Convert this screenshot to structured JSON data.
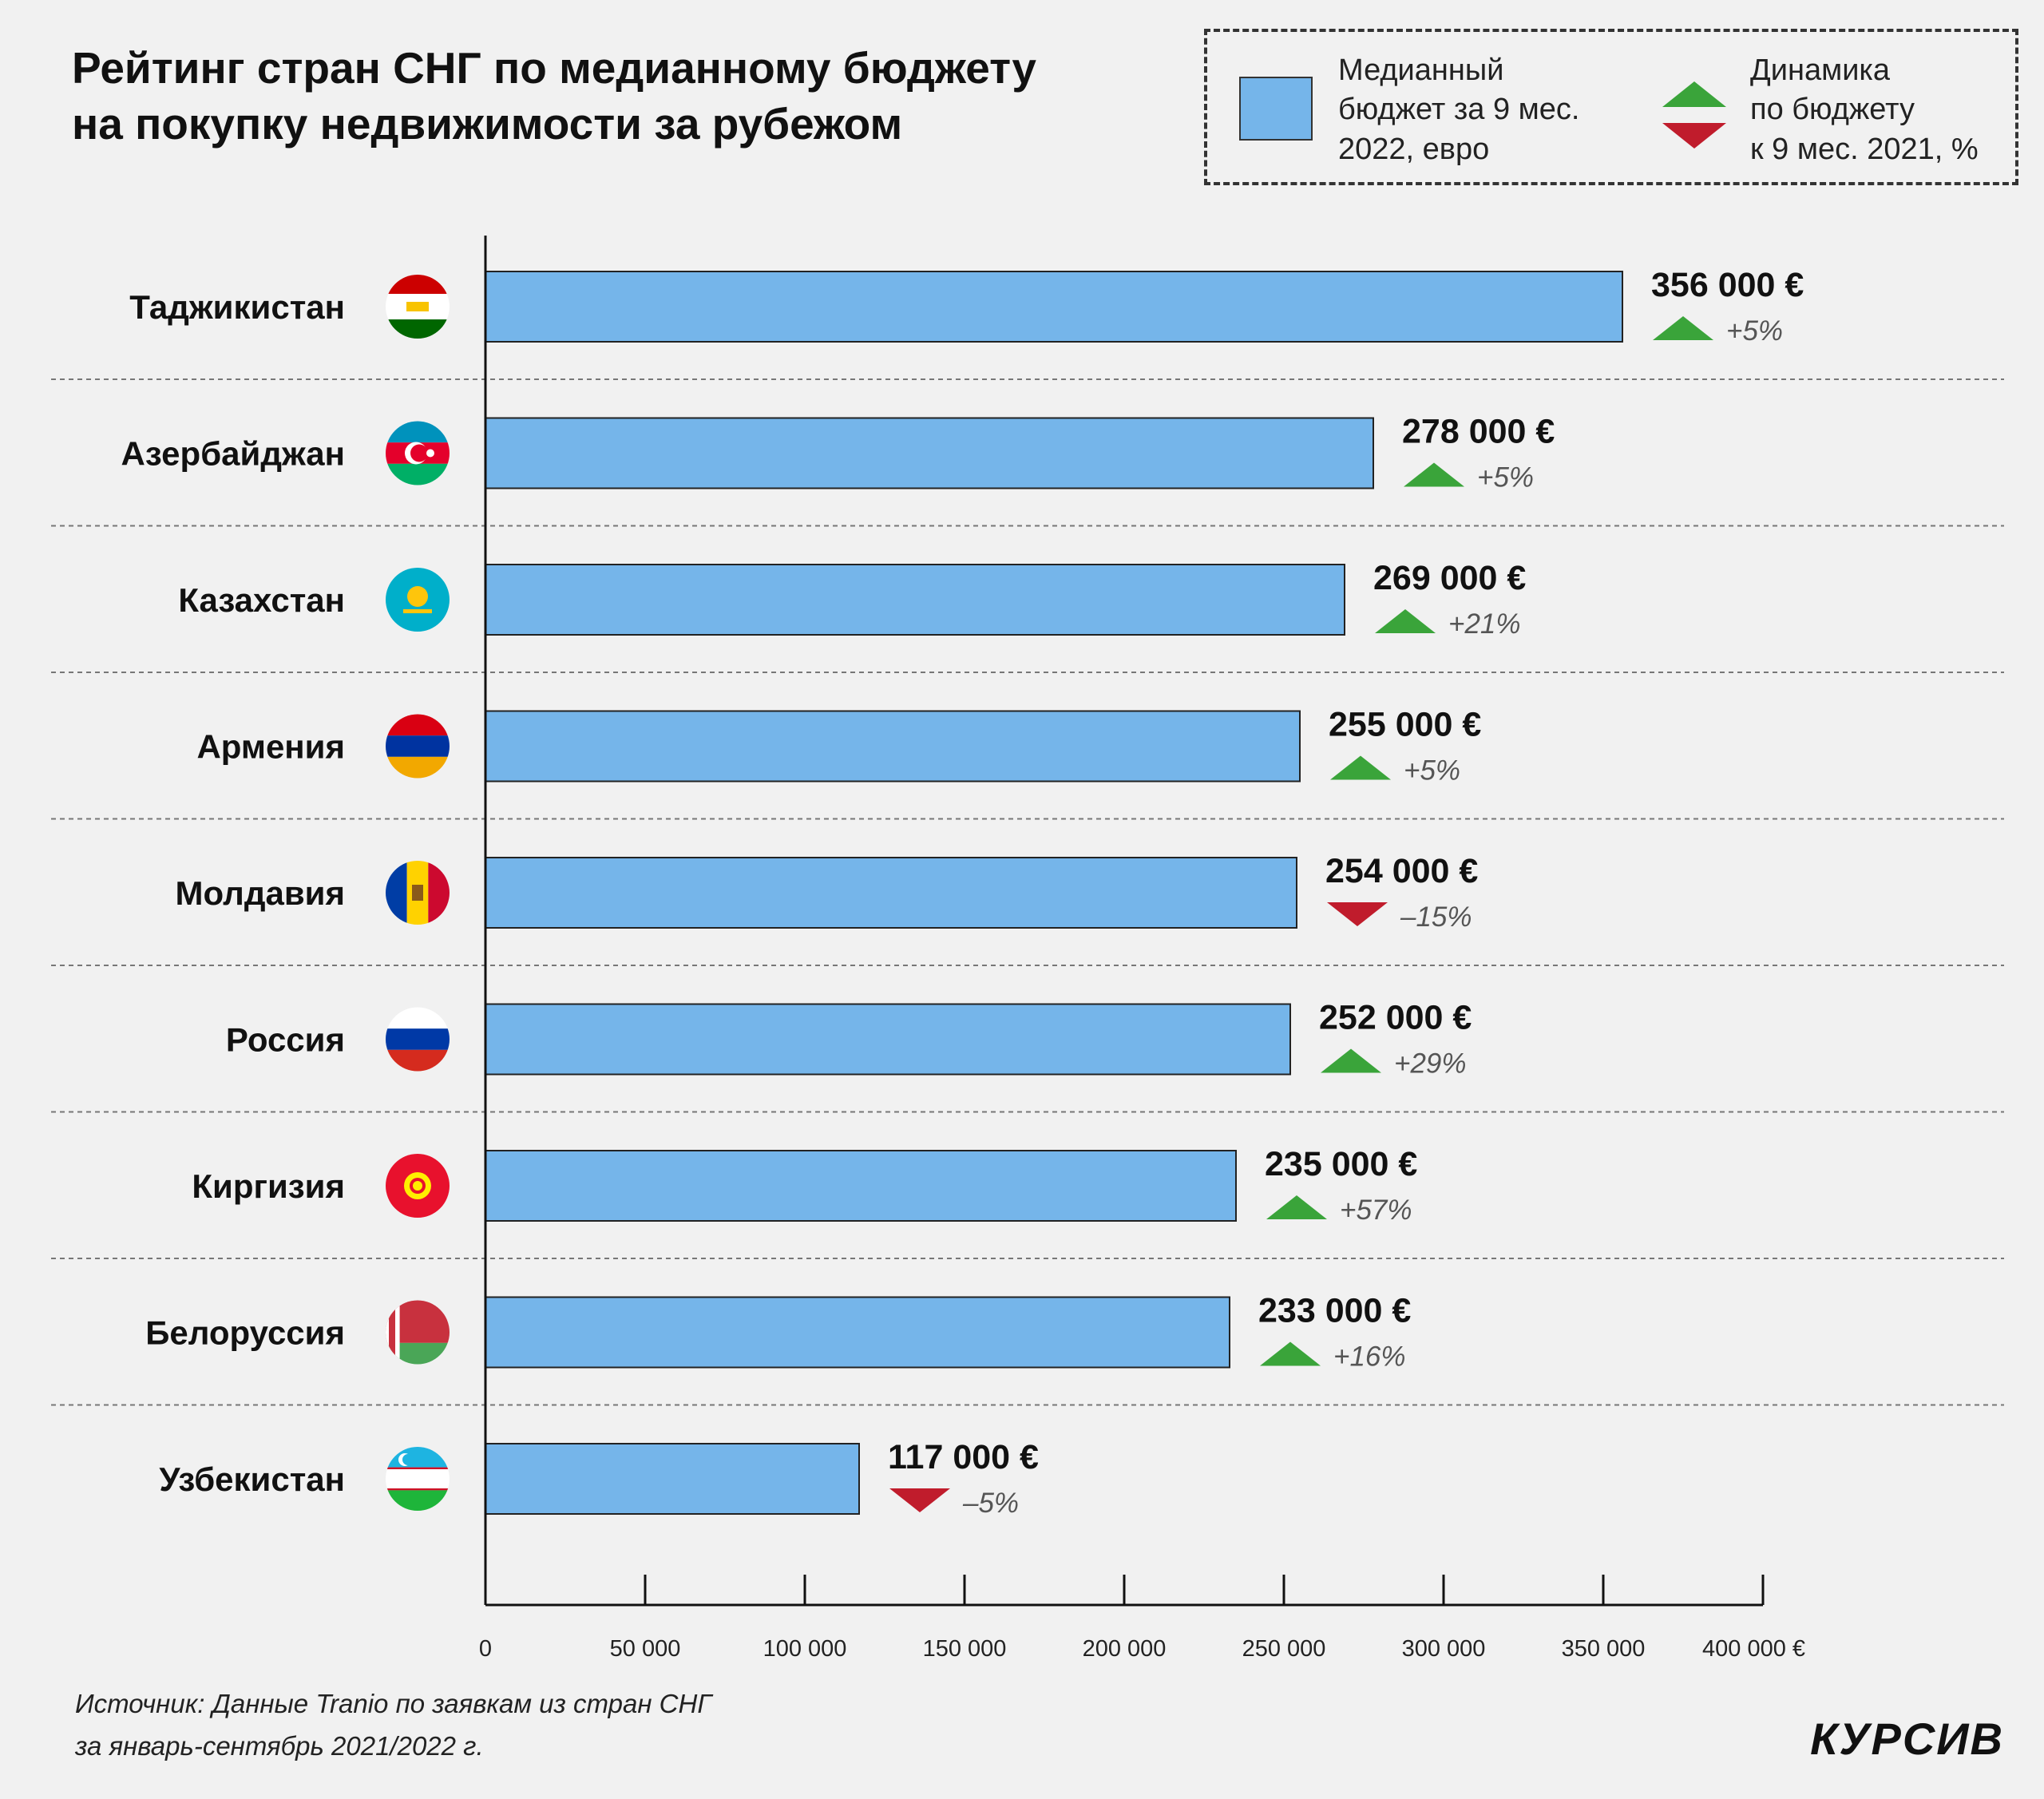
{
  "title": "Рейтинг стран СНГ по медианному бюджету\nна покупку недвижимости за рубежом",
  "legend": {
    "budget": "Медианный\nбюджет за 9 мес.\n2022, евро",
    "dynamics": "Динамика\nпо бюджету\nк 9 мес. 2021, %"
  },
  "colors": {
    "bar": "#75b5ea",
    "up": "#3aa43a",
    "down": "#c01c2c"
  },
  "chart_data": {
    "type": "bar",
    "orientation": "horizontal",
    "categories": [
      "Таджикистан",
      "Азербайджан",
      "Казахстан",
      "Армения",
      "Молдавия",
      "Россия",
      "Киргизия",
      "Белоруссия",
      "Узбекистан"
    ],
    "values": [
      356000,
      278000,
      269000,
      255000,
      254000,
      252000,
      235000,
      233000,
      117000
    ],
    "value_labels": [
      "356 000 €",
      "278 000 €",
      "269 000 €",
      "255 000 €",
      "254 000 €",
      "252 000 €",
      "235 000 €",
      "233 000 €",
      "117 000 €"
    ],
    "change": [
      5,
      5,
      21,
      5,
      -15,
      29,
      57,
      16,
      -5
    ],
    "change_labels": [
      "+5%",
      "+5%",
      "+21%",
      "+5%",
      "–15%",
      "+29%",
      "+57%",
      "+16%",
      "–5%"
    ],
    "flags": [
      "tajikistan-flag",
      "azerbaijan-flag",
      "kazakhstan-flag",
      "armenia-flag",
      "moldova-flag",
      "russia-flag",
      "kyrgyzstan-flag",
      "belarus-flag",
      "uzbekistan-flag"
    ],
    "xlim": [
      0,
      400000
    ],
    "xticks": [
      0,
      50000,
      100000,
      150000,
      200000,
      250000,
      300000,
      350000,
      400000
    ],
    "xtick_labels": [
      "0",
      "50 000",
      "100 000",
      "150 000",
      "200 000",
      "250 000",
      "300 000",
      "350 000",
      "400 000 €"
    ],
    "grid": false
  },
  "source": "Источник: Данные Tranio по заявкам из стран СНГ\nза январь-сентябрь 2021/2022 г.",
  "logo": "КУРСИВ"
}
